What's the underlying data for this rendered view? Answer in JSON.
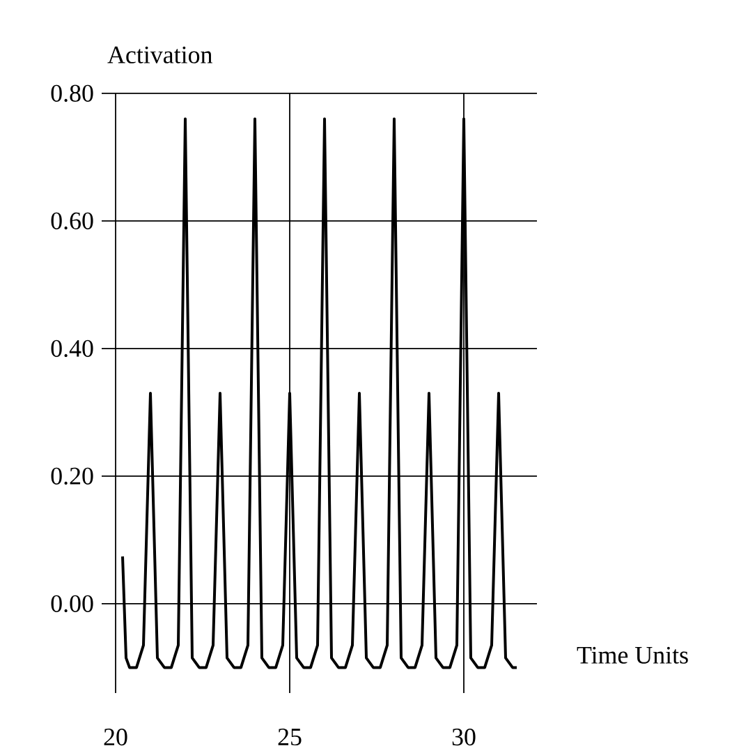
{
  "chart_data": {
    "type": "line",
    "xlabel": "Time Units",
    "ylabel": "Activation",
    "xlim": [
      19.6,
      32.1
    ],
    "ylim": [
      -0.14,
      0.8
    ],
    "xticks": [
      20,
      25,
      30
    ],
    "yticks": [
      {
        "value": 0,
        "label": "0.00"
      },
      {
        "value": 0.2,
        "label": "0.20"
      },
      {
        "value": 0.4,
        "label": "0.40"
      },
      {
        "value": 0.6,
        "label": "0.60"
      },
      {
        "value": 0.8,
        "label": "0.80"
      }
    ],
    "grid": true,
    "marker": "none",
    "line_style": "solid",
    "series": [
      {
        "color": "#000000",
        "x": [
          20.2,
          20.3,
          20.4,
          20.6,
          20.8,
          21,
          21.2,
          21.4,
          21.6,
          21.8,
          22,
          22.2,
          22.4,
          22.6,
          22.8,
          23,
          23.2,
          23.4,
          23.6,
          23.8,
          24,
          24.2,
          24.4,
          24.6,
          24.8,
          25,
          25.2,
          25.4,
          25.6,
          25.8,
          26,
          26.2,
          26.4,
          26.6,
          26.8,
          27,
          27.2,
          27.4,
          27.6,
          27.8,
          28,
          28.2,
          28.4,
          28.6,
          28.8,
          29,
          29.2,
          29.4,
          29.6,
          29.8,
          30,
          30.2,
          30.4,
          30.6,
          30.8,
          31,
          31.2,
          31.4,
          31.52
        ],
        "values": [
          0.074,
          -0.085,
          -0.1,
          -0.1,
          -0.065,
          0.33,
          -0.085,
          -0.1,
          -0.1,
          -0.065,
          0.76,
          -0.085,
          -0.1,
          -0.1,
          -0.065,
          0.33,
          -0.085,
          -0.1,
          -0.1,
          -0.065,
          0.76,
          -0.085,
          -0.1,
          -0.1,
          -0.065,
          0.33,
          -0.085,
          -0.1,
          -0.1,
          -0.065,
          0.76,
          -0.085,
          -0.1,
          -0.1,
          -0.065,
          0.33,
          -0.085,
          -0.1,
          -0.1,
          -0.065,
          0.76,
          -0.085,
          -0.1,
          -0.1,
          -0.065,
          0.33,
          -0.085,
          -0.1,
          -0.1,
          -0.065,
          0.76,
          -0.085,
          -0.1,
          -0.1,
          -0.065,
          0.33,
          -0.085,
          -0.1,
          -0.1
        ]
      }
    ]
  }
}
